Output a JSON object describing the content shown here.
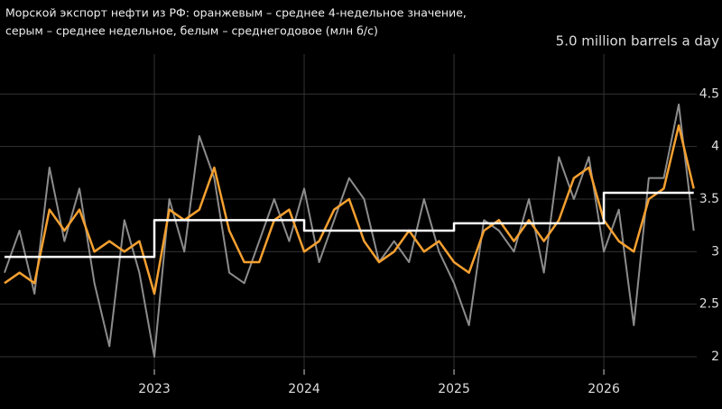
{
  "chart_data": {
    "type": "line",
    "title": [
      "Морской экспорт нефти из РФ: оранжевым – среднее 4-недельное значение,",
      "серым – среднее недельное, белым – среднегодовое (млн б/с)"
    ],
    "x": [
      2022.0,
      2022.1,
      2022.2,
      2022.3,
      2022.4,
      2022.5,
      2022.6,
      2022.7,
      2022.8,
      2022.9,
      2023.0,
      2023.1,
      2023.2,
      2023.3,
      2023.4,
      2023.5,
      2023.6,
      2023.7,
      2023.8,
      2023.9,
      2024.0,
      2024.1,
      2024.2,
      2024.3,
      2024.4,
      2024.5,
      2024.6,
      2024.7,
      2024.8,
      2024.9,
      2025.0,
      2025.1,
      2025.2,
      2025.3,
      2025.4,
      2025.5,
      2025.6,
      2025.7,
      2025.8,
      2025.9,
      2026.0,
      2026.1,
      2026.2,
      2026.3,
      2026.4,
      2026.5,
      2026.6
    ],
    "series": [
      {
        "name": "weekly",
        "color": "#8c8c8c",
        "width": 2,
        "values": [
          2.8,
          3.2,
          2.6,
          3.8,
          3.1,
          3.6,
          2.7,
          2.1,
          3.3,
          2.8,
          2.0,
          3.5,
          3.0,
          4.1,
          3.7,
          2.8,
          2.7,
          3.1,
          3.5,
          3.1,
          3.6,
          2.9,
          3.3,
          3.7,
          3.5,
          2.9,
          3.1,
          2.9,
          3.5,
          3.0,
          2.7,
          2.3,
          3.3,
          3.2,
          3.0,
          3.5,
          2.8,
          3.9,
          3.5,
          3.9,
          3.0,
          3.4,
          2.3,
          3.7,
          3.7,
          4.4,
          3.2
        ]
      },
      {
        "name": "4-week",
        "color": "#f5a030",
        "width": 2.5,
        "values": [
          2.7,
          2.8,
          2.7,
          3.4,
          3.2,
          3.4,
          3.0,
          3.1,
          3.0,
          3.1,
          2.6,
          3.4,
          3.3,
          3.4,
          3.8,
          3.2,
          2.9,
          2.9,
          3.3,
          3.4,
          3.0,
          3.1,
          3.4,
          3.5,
          3.1,
          2.9,
          3.0,
          3.2,
          3.0,
          3.1,
          2.9,
          2.8,
          3.2,
          3.3,
          3.1,
          3.3,
          3.1,
          3.3,
          3.7,
          3.8,
          3.3,
          3.1,
          3.0,
          3.5,
          3.6,
          4.2,
          3.6
        ]
      },
      {
        "name": "annual",
        "color": "#ffffff",
        "width": 2.5,
        "x": [
          2022.0,
          2023.0,
          2023.0,
          2024.0,
          2024.0,
          2025.0,
          2025.0,
          2026.0,
          2026.0,
          2026.6
        ],
        "values": [
          2.95,
          2.95,
          3.3,
          3.3,
          3.2,
          3.2,
          3.27,
          3.27,
          3.56,
          3.56
        ]
      }
    ],
    "xlim": [
      2022.0,
      2026.62
    ],
    "xticks": [
      2023,
      2024,
      2025,
      2026
    ],
    "ylim": [
      1.88,
      5.0
    ],
    "yticks": [
      2.0,
      2.5,
      3.0,
      3.5,
      4.0,
      4.5,
      {
        "value": 5.0,
        "label": "5.0 million barrels a day"
      }
    ],
    "grid": true,
    "background": "#000000"
  }
}
